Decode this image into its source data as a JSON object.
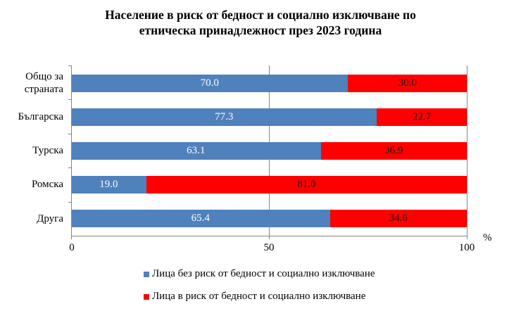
{
  "title": {
    "line1": "Население в риск от бедност и социално изключване по",
    "line2": "етническа принадлежност през 2023 година"
  },
  "colors": {
    "no_risk": "#4f81bd",
    "at_risk": "#ff0000",
    "axis": "#868686"
  },
  "axis": {
    "ticks": [
      "0",
      "50",
      "100"
    ],
    "unit": "%"
  },
  "categories": [
    {
      "label_line1": "Общо за",
      "label_line2": "страната",
      "no_risk": "70.0",
      "at_risk": "30.0"
    },
    {
      "label_line1": "Българска",
      "label_line2": "",
      "no_risk": "77.3",
      "at_risk": "22.7"
    },
    {
      "label_line1": "Турска",
      "label_line2": "",
      "no_risk": "63.1",
      "at_risk": "36.9"
    },
    {
      "label_line1": "Ромска",
      "label_line2": "",
      "no_risk": "19.0",
      "at_risk": "81.0"
    },
    {
      "label_line1": "Друга",
      "label_line2": "",
      "no_risk": "65.4",
      "at_risk": "34.6"
    }
  ],
  "legend": {
    "no_risk": "Лица без риск от бедност и социално изключване",
    "at_risk": "Лица в риск от бедност и социално изключване"
  },
  "chart_data": {
    "type": "bar",
    "orientation": "horizontal",
    "stacked": true,
    "title": "Население в риск от бедност и социално изключване по етническа принадлежност през 2023 година",
    "categories": [
      "Общо за страната",
      "Българска",
      "Турска",
      "Ромска",
      "Друга"
    ],
    "series": [
      {
        "name": "Лица без риск от бедност и социално изключване",
        "color": "#4f81bd",
        "values": [
          70.0,
          77.3,
          63.1,
          19.0,
          65.4
        ]
      },
      {
        "name": "Лица в риск от бедност и социално изключване",
        "color": "#ff0000",
        "values": [
          30.0,
          22.7,
          36.9,
          81.0,
          34.6
        ]
      }
    ],
    "xlabel": "%",
    "ylabel": "",
    "xlim": [
      0,
      100
    ],
    "xticks": [
      0,
      50,
      100
    ],
    "grid": "vertical at 50 and 100",
    "legend_position": "bottom"
  }
}
